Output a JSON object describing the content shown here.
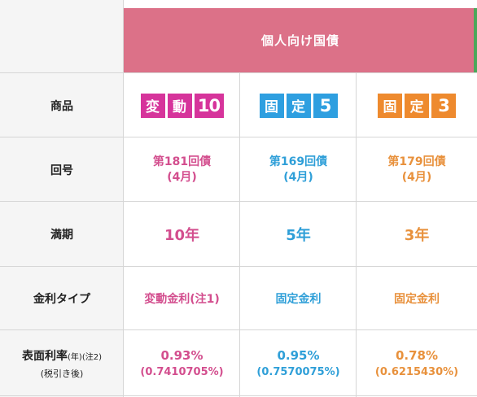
{
  "table_title": "個人向け国債",
  "row_labels": {
    "product": "商品",
    "issue": "回号",
    "term": "満期",
    "rate_type": "金利タイプ",
    "rate_main": "表面利率",
    "rate_year": "(年)",
    "rate_note": "(注2)",
    "rate_after_tax": "(税引き後)"
  },
  "products": [
    {
      "logo_chars": [
        "変",
        "動",
        "10"
      ],
      "color": "#d6349b",
      "issue_line1": "第181回債",
      "issue_line2": "(4月)",
      "term": "10年",
      "rate_type": "変動金利(注1)",
      "rate": "0.93%",
      "rate_after_tax": "(0.7410705%)"
    },
    {
      "logo_chars": [
        "固",
        "定",
        "5"
      ],
      "color": "#2e9fe0",
      "issue_line1": "第169回債",
      "issue_line2": "(4月)",
      "term": "5年",
      "rate_type": "固定金利",
      "rate": "0.95%",
      "rate_after_tax": "(0.7570075%)"
    },
    {
      "logo_chars": [
        "固",
        "定",
        "3"
      ],
      "color": "#ee8a2e",
      "issue_line1": "第179回債",
      "issue_line2": "(4月)",
      "term": "3年",
      "rate_type": "固定金利",
      "rate": "0.78%",
      "rate_after_tax": "(0.6215430%)"
    }
  ],
  "colors": {
    "banner": "#dc7188",
    "header_bg": "#f5f5f5",
    "pink_text": "#d34e8e",
    "blue_text": "#2f9fd8",
    "orange_text": "#e8913c"
  }
}
